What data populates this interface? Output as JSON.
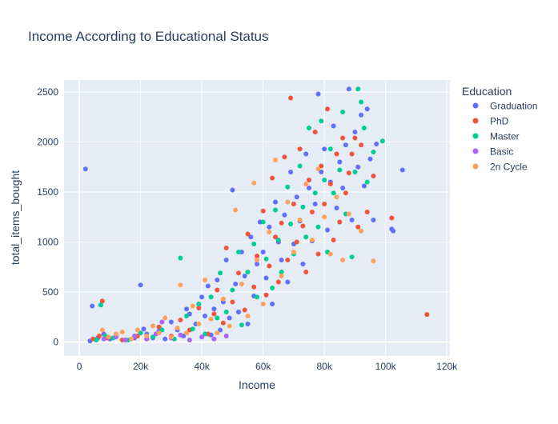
{
  "chart_data": {
    "type": "scatter",
    "title": "Income According to Educational Status",
    "xlabel": "Income",
    "ylabel": "total_items_bought",
    "xlim": [
      -5000,
      121000
    ],
    "ylim": [
      -140,
      2620
    ],
    "x_ticks": [
      0,
      20000,
      40000,
      60000,
      80000,
      100000,
      120000
    ],
    "x_tick_labels": [
      "0",
      "20k",
      "40k",
      "60k",
      "80k",
      "100k",
      "120k"
    ],
    "y_ticks": [
      0,
      500,
      1000,
      1500,
      2000,
      2500
    ],
    "y_tick_labels": [
      "0",
      "500",
      "1000",
      "1500",
      "2000",
      "2500"
    ],
    "grid": true,
    "legend": {
      "title": "Education",
      "position": "top-right outside"
    },
    "series": [
      {
        "name": "Graduation",
        "color": "#636efa",
        "points": [
          [
            2000,
            1730
          ],
          [
            3500,
            10
          ],
          [
            4200,
            360
          ],
          [
            6000,
            40
          ],
          [
            8000,
            80
          ],
          [
            10000,
            30
          ],
          [
            12000,
            60
          ],
          [
            15000,
            20
          ],
          [
            18000,
            40
          ],
          [
            20000,
            570
          ],
          [
            21000,
            130
          ],
          [
            22000,
            80
          ],
          [
            24000,
            40
          ],
          [
            26000,
            110
          ],
          [
            28000,
            30
          ],
          [
            30000,
            200
          ],
          [
            32000,
            120
          ],
          [
            34000,
            60
          ],
          [
            35000,
            330
          ],
          [
            36000,
            280
          ],
          [
            38000,
            180
          ],
          [
            40000,
            450
          ],
          [
            41000,
            260
          ],
          [
            42000,
            560
          ],
          [
            43000,
            70
          ],
          [
            44000,
            330
          ],
          [
            45000,
            620
          ],
          [
            46000,
            120
          ],
          [
            47000,
            400
          ],
          [
            48000,
            820
          ],
          [
            49000,
            240
          ],
          [
            50000,
            1520
          ],
          [
            51000,
            580
          ],
          [
            52000,
            300
          ],
          [
            53000,
            900
          ],
          [
            54000,
            660
          ],
          [
            55000,
            180
          ],
          [
            56000,
            1050
          ],
          [
            57000,
            460
          ],
          [
            58000,
            780
          ],
          [
            59000,
            1200
          ],
          [
            60000,
            900
          ],
          [
            61000,
            640
          ],
          [
            62000,
            1150
          ],
          [
            63000,
            380
          ],
          [
            64000,
            1400
          ],
          [
            65000,
            1000
          ],
          [
            66000,
            820
          ],
          [
            67000,
            1270
          ],
          [
            68000,
            600
          ],
          [
            69000,
            1700
          ],
          [
            70000,
            980
          ],
          [
            71000,
            1450
          ],
          [
            72000,
            1210
          ],
          [
            73000,
            780
          ],
          [
            74000,
            1880
          ],
          [
            75000,
            1540
          ],
          [
            76000,
            1010
          ],
          [
            77000,
            1380
          ],
          [
            78000,
            2480
          ],
          [
            79000,
            1700
          ],
          [
            80000,
            1930
          ],
          [
            81000,
            1120
          ],
          [
            82000,
            1600
          ],
          [
            83000,
            2160
          ],
          [
            84000,
            1340
          ],
          [
            85000,
            1800
          ],
          [
            86000,
            1540
          ],
          [
            87000,
            1970
          ],
          [
            88000,
            2530
          ],
          [
            89000,
            1220
          ],
          [
            90000,
            2100
          ],
          [
            91000,
            1750
          ],
          [
            92000,
            2270
          ],
          [
            93000,
            1560
          ],
          [
            94000,
            2330
          ],
          [
            95000,
            1830
          ],
          [
            96000,
            1220
          ],
          [
            97000,
            1980
          ],
          [
            102000,
            1130
          ],
          [
            102500,
            1110
          ],
          [
            105500,
            1720
          ]
        ]
      },
      {
        "name": "PhD",
        "color": "#ef553b",
        "points": [
          [
            4500,
            30
          ],
          [
            6500,
            60
          ],
          [
            7500,
            410
          ],
          [
            9000,
            40
          ],
          [
            14000,
            20
          ],
          [
            19000,
            60
          ],
          [
            22000,
            30
          ],
          [
            26000,
            150
          ],
          [
            30000,
            60
          ],
          [
            33000,
            220
          ],
          [
            36000,
            120
          ],
          [
            39000,
            340
          ],
          [
            42000,
            80
          ],
          [
            44000,
            280
          ],
          [
            45000,
            520
          ],
          [
            47000,
            190
          ],
          [
            48000,
            940
          ],
          [
            50000,
            400
          ],
          [
            52000,
            690
          ],
          [
            54000,
            320
          ],
          [
            55000,
            1080
          ],
          [
            57000,
            550
          ],
          [
            58000,
            860
          ],
          [
            60000,
            1310
          ],
          [
            61000,
            470
          ],
          [
            62000,
            760
          ],
          [
            63000,
            1640
          ],
          [
            64000,
            1050
          ],
          [
            65000,
            600
          ],
          [
            66000,
            1190
          ],
          [
            67000,
            1850
          ],
          [
            68000,
            820
          ],
          [
            69000,
            2440
          ],
          [
            70000,
            1380
          ],
          [
            71000,
            1000
          ],
          [
            72000,
            1930
          ],
          [
            73000,
            1160
          ],
          [
            74000,
            700
          ],
          [
            75000,
            1620
          ],
          [
            76000,
            1300
          ],
          [
            77000,
            2100
          ],
          [
            78000,
            880
          ],
          [
            79000,
            1760
          ],
          [
            80000,
            1380
          ],
          [
            81000,
            2330
          ],
          [
            82000,
            1580
          ],
          [
            83000,
            1020
          ],
          [
            84000,
            1880
          ],
          [
            85000,
            1200
          ],
          [
            86000,
            2040
          ],
          [
            87000,
            1490
          ],
          [
            88000,
            1690
          ],
          [
            89000,
            1880
          ],
          [
            90000,
            2040
          ],
          [
            91000,
            1150
          ],
          [
            92000,
            1970
          ],
          [
            94000,
            1300
          ],
          [
            96000,
            1660
          ],
          [
            102000,
            1240
          ],
          [
            113500,
            275
          ]
        ]
      },
      {
        "name": "Master",
        "color": "#00cc96",
        "points": [
          [
            5500,
            20
          ],
          [
            7000,
            370
          ],
          [
            8500,
            60
          ],
          [
            11000,
            40
          ],
          [
            16000,
            20
          ],
          [
            20000,
            90
          ],
          [
            24000,
            50
          ],
          [
            27000,
            120
          ],
          [
            31000,
            30
          ],
          [
            33000,
            840
          ],
          [
            35000,
            260
          ],
          [
            37000,
            130
          ],
          [
            39000,
            380
          ],
          [
            41000,
            80
          ],
          [
            43000,
            450
          ],
          [
            45000,
            240
          ],
          [
            46000,
            690
          ],
          [
            48000,
            300
          ],
          [
            50000,
            520
          ],
          [
            52000,
            900
          ],
          [
            53000,
            170
          ],
          [
            55000,
            700
          ],
          [
            57000,
            980
          ],
          [
            58000,
            450
          ],
          [
            60000,
            1200
          ],
          [
            61000,
            830
          ],
          [
            63000,
            540
          ],
          [
            64000,
            1320
          ],
          [
            65000,
            1020
          ],
          [
            66000,
            700
          ],
          [
            68000,
            1550
          ],
          [
            69000,
            1180
          ],
          [
            70000,
            880
          ],
          [
            72000,
            1760
          ],
          [
            73000,
            1350
          ],
          [
            74000,
            1050
          ],
          [
            75000,
            2140
          ],
          [
            77000,
            1490
          ],
          [
            78000,
            1150
          ],
          [
            79000,
            2210
          ],
          [
            80000,
            1620
          ],
          [
            81000,
            900
          ],
          [
            82000,
            1930
          ],
          [
            83000,
            1490
          ],
          [
            85000,
            1720
          ],
          [
            86000,
            2300
          ],
          [
            87000,
            1280
          ],
          [
            89000,
            850
          ],
          [
            90000,
            1700
          ],
          [
            91000,
            2530
          ],
          [
            92000,
            2400
          ],
          [
            93000,
            2140
          ],
          [
            94000,
            1600
          ],
          [
            96000,
            1900
          ],
          [
            99000,
            2010
          ]
        ]
      },
      {
        "name": "Basic",
        "color": "#ab63fa",
        "points": [
          [
            8000,
            30
          ],
          [
            12000,
            50
          ],
          [
            15000,
            20
          ],
          [
            18000,
            60
          ],
          [
            22000,
            30
          ],
          [
            25000,
            80
          ],
          [
            27000,
            200
          ],
          [
            30000,
            40
          ],
          [
            33000,
            70
          ],
          [
            36000,
            20
          ],
          [
            40000,
            50
          ],
          [
            44000,
            30
          ],
          [
            48000,
            60
          ]
        ]
      },
      {
        "name": "2n Cycle",
        "color": "#ffa15a",
        "points": [
          [
            7500,
            120
          ],
          [
            9500,
            50
          ],
          [
            12000,
            80
          ],
          [
            14000,
            100
          ],
          [
            17000,
            30
          ],
          [
            19000,
            120
          ],
          [
            22000,
            60
          ],
          [
            24000,
            160
          ],
          [
            26000,
            90
          ],
          [
            28000,
            240
          ],
          [
            30000,
            50
          ],
          [
            32000,
            140
          ],
          [
            33000,
            570
          ],
          [
            35000,
            90
          ],
          [
            37000,
            360
          ],
          [
            39000,
            180
          ],
          [
            41000,
            620
          ],
          [
            43000,
            230
          ],
          [
            45000,
            90
          ],
          [
            47000,
            430
          ],
          [
            49000,
            160
          ],
          [
            51000,
            1320
          ],
          [
            53000,
            580
          ],
          [
            55000,
            260
          ],
          [
            57000,
            1590
          ],
          [
            58000,
            820
          ],
          [
            60000,
            380
          ],
          [
            62000,
            1100
          ],
          [
            64000,
            1820
          ],
          [
            66000,
            660
          ],
          [
            68000,
            1400
          ],
          [
            70000,
            900
          ],
          [
            72000,
            1220
          ],
          [
            74000,
            1580
          ],
          [
            76000,
            1020
          ],
          [
            78000,
            1730
          ],
          [
            80000,
            1250
          ],
          [
            82000,
            880
          ],
          [
            84000,
            1450
          ],
          [
            86000,
            820
          ],
          [
            88000,
            1280
          ],
          [
            92000,
            1110
          ],
          [
            96000,
            810
          ]
        ]
      }
    ]
  }
}
